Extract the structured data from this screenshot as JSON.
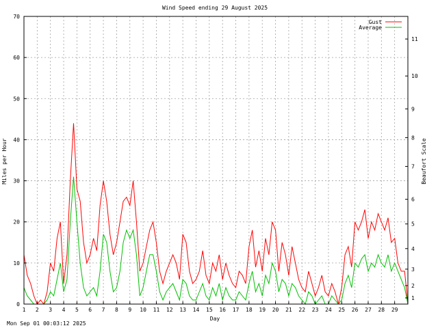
{
  "chart_data": {
    "type": "line",
    "title": "Wind Speed ending 29 August 2025",
    "xlabel": "Day",
    "ylabel": "Miles per Hour",
    "y2label": "Beaufort Scale",
    "x_ticks": [
      "1",
      "2",
      "3",
      "4",
      "5",
      "6",
      "7",
      "8",
      "9",
      "10",
      "11",
      "12",
      "13",
      "14",
      "15",
      "16",
      "17",
      "18",
      "19",
      "20",
      "21",
      "22",
      "23",
      "24",
      "25",
      "26",
      "27",
      "28",
      "29"
    ],
    "x_range": [
      1,
      30
    ],
    "ylim": [
      0,
      70
    ],
    "y_ticks": [
      0,
      10,
      20,
      30,
      40,
      50,
      60,
      70
    ],
    "beaufort_ticks": [
      {
        "label": "1",
        "mph": 1.5
      },
      {
        "label": "2",
        "mph": 4.5
      },
      {
        "label": "3",
        "mph": 8.5
      },
      {
        "label": "4",
        "mph": 13.5
      },
      {
        "label": "5",
        "mph": 19.5
      },
      {
        "label": "6",
        "mph": 25.5
      },
      {
        "label": "7",
        "mph": 33.5
      },
      {
        "label": "8",
        "mph": 40.5
      },
      {
        "label": "9",
        "mph": 47.5
      },
      {
        "label": "10",
        "mph": 55.5
      },
      {
        "label": "11",
        "mph": 64.5
      }
    ],
    "grid": true,
    "legend_position": "top-right",
    "series": [
      {
        "name": "Gust",
        "color": "#ff0000",
        "x": [
          1.0,
          1.25,
          1.5,
          1.75,
          2.0,
          2.25,
          2.5,
          2.75,
          3.0,
          3.25,
          3.5,
          3.75,
          4.0,
          4.25,
          4.5,
          4.75,
          5.0,
          5.25,
          5.5,
          5.75,
          6.0,
          6.25,
          6.5,
          6.75,
          7.0,
          7.25,
          7.5,
          7.75,
          8.0,
          8.25,
          8.5,
          8.75,
          9.0,
          9.25,
          9.5,
          9.75,
          10.0,
          10.25,
          10.5,
          10.75,
          11.0,
          11.25,
          11.5,
          11.75,
          12.0,
          12.25,
          12.5,
          12.75,
          13.0,
          13.25,
          13.5,
          13.75,
          14.0,
          14.25,
          14.5,
          14.75,
          15.0,
          15.25,
          15.5,
          15.75,
          16.0,
          16.25,
          16.5,
          16.75,
          17.0,
          17.25,
          17.5,
          17.75,
          18.0,
          18.25,
          18.5,
          18.75,
          19.0,
          19.25,
          19.5,
          19.75,
          20.0,
          20.25,
          20.5,
          20.75,
          21.0,
          21.25,
          21.5,
          21.75,
          22.0,
          22.25,
          22.5,
          22.75,
          23.0,
          23.25,
          23.5,
          23.75,
          24.0,
          24.25,
          24.5,
          24.75,
          25.0,
          25.25,
          25.5,
          25.75,
          26.0,
          26.25,
          26.5,
          26.75,
          27.0,
          27.25,
          27.5,
          27.75,
          28.0,
          28.25,
          28.5,
          28.75,
          29.0,
          29.25,
          29.5,
          29.75,
          30.0
        ],
        "values": [
          12,
          7,
          5,
          2,
          0,
          1,
          0,
          3,
          10,
          8,
          16,
          20,
          5,
          12,
          30,
          44,
          28,
          25,
          15,
          10,
          12,
          16,
          13,
          24,
          30,
          25,
          17,
          12,
          15,
          20,
          25,
          26,
          24,
          30,
          20,
          8,
          10,
          14,
          18,
          20,
          15,
          8,
          5,
          8,
          10,
          12,
          10,
          6,
          17,
          15,
          8,
          5,
          6,
          8,
          13,
          7,
          5,
          10,
          8,
          12,
          6,
          10,
          7,
          5,
          4,
          8,
          7,
          5,
          14,
          18,
          9,
          13,
          8,
          16,
          12,
          20,
          18,
          8,
          15,
          12,
          7,
          14,
          10,
          6,
          4,
          3,
          8,
          5,
          2,
          4,
          7,
          3,
          2,
          5,
          3,
          0,
          4,
          12,
          14,
          9,
          20,
          18,
          20,
          23,
          16,
          20,
          18,
          22,
          20,
          18,
          21,
          15,
          16,
          10,
          8,
          8,
          0
        ]
      },
      {
        "name": "Average",
        "color": "#00c000",
        "x": [
          1.0,
          1.25,
          1.5,
          1.75,
          2.0,
          2.25,
          2.5,
          2.75,
          3.0,
          3.25,
          3.5,
          3.75,
          4.0,
          4.25,
          4.5,
          4.75,
          5.0,
          5.25,
          5.5,
          5.75,
          6.0,
          6.25,
          6.5,
          6.75,
          7.0,
          7.25,
          7.5,
          7.75,
          8.0,
          8.25,
          8.5,
          8.75,
          9.0,
          9.25,
          9.5,
          9.75,
          10.0,
          10.25,
          10.5,
          10.75,
          11.0,
          11.25,
          11.5,
          11.75,
          12.0,
          12.25,
          12.5,
          12.75,
          13.0,
          13.25,
          13.5,
          13.75,
          14.0,
          14.25,
          14.5,
          14.75,
          15.0,
          15.25,
          15.5,
          15.75,
          16.0,
          16.25,
          16.5,
          16.75,
          17.0,
          17.25,
          17.5,
          17.75,
          18.0,
          18.25,
          18.5,
          18.75,
          19.0,
          19.25,
          19.5,
          19.75,
          20.0,
          20.25,
          20.5,
          20.75,
          21.0,
          21.25,
          21.5,
          21.75,
          22.0,
          22.25,
          22.5,
          22.75,
          23.0,
          23.25,
          23.5,
          23.75,
          24.0,
          24.25,
          24.5,
          24.75,
          25.0,
          25.25,
          25.5,
          25.75,
          26.0,
          26.25,
          26.5,
          26.75,
          27.0,
          27.25,
          27.5,
          27.75,
          28.0,
          28.25,
          28.5,
          28.75,
          29.0,
          29.25,
          29.5,
          29.75,
          30.0
        ],
        "values": [
          4,
          2,
          1,
          0,
          0,
          0,
          0,
          1,
          3,
          2,
          6,
          10,
          3,
          6,
          20,
          31,
          20,
          10,
          4,
          2,
          3,
          4,
          2,
          8,
          17,
          15,
          8,
          3,
          4,
          8,
          15,
          18,
          16,
          18,
          12,
          2,
          4,
          8,
          12,
          12,
          8,
          3,
          1,
          3,
          4,
          5,
          3,
          1,
          6,
          5,
          2,
          1,
          1,
          3,
          5,
          2,
          1,
          4,
          2,
          5,
          1,
          4,
          2,
          1,
          1,
          3,
          2,
          1,
          5,
          8,
          3,
          5,
          2,
          7,
          5,
          10,
          8,
          3,
          6,
          5,
          2,
          5,
          4,
          2,
          1,
          0,
          3,
          2,
          0,
          1,
          2,
          0,
          0,
          2,
          1,
          0,
          1,
          5,
          7,
          4,
          10,
          9,
          11,
          12,
          8,
          10,
          9,
          12,
          10,
          9,
          12,
          8,
          10,
          8,
          6,
          4,
          0
        ]
      }
    ]
  },
  "footer": {
    "timestamp": "Mon Sep 01 00:03:12 2025"
  }
}
